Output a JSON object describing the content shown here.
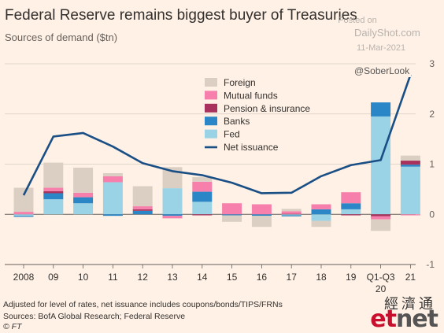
{
  "title": "Federal Reserve remains biggest buyer of Treasuries",
  "subtitle": "Sources of demand ($tn)",
  "watermark": {
    "posted": "Posted on",
    "site": "DailyShot.com",
    "date": "11-Mar-2021",
    "handle": "@SoberLook"
  },
  "footnote": "Adjusted for level of rates, net issuance includes coupons/bonds/TIPS/FRNs",
  "sources": "Sources: BofA Global Research; Federal Reserve",
  "copyright": "© FT",
  "logo": {
    "chinese": "經濟通",
    "et": "et",
    "net": "net"
  },
  "colors": {
    "background": "#fff1e5",
    "foreign": "#dbcfc4",
    "mutual_funds": "#f77fab",
    "pension_insurance": "#a8315d",
    "banks": "#2a86c6",
    "fed": "#9ad3e5",
    "net_issuance": "#1a4f86",
    "grid": "#d6cbc2"
  },
  "chart_data": {
    "type": "bar",
    "stacked": true,
    "title": "Federal Reserve remains biggest buyer of Treasuries",
    "subtitle": "Sources of demand ($tn)",
    "categories": [
      "2008",
      "09",
      "10",
      "11",
      "12",
      "13",
      "14",
      "15",
      "16",
      "17",
      "18",
      "19",
      "Q1-Q3",
      "21"
    ],
    "category_sublabels": [
      "",
      "",
      "",
      "",
      "",
      "",
      "",
      "",
      "",
      "",
      "",
      "",
      "20",
      ""
    ],
    "ylim": [
      -1,
      3
    ],
    "yticks": [
      -1,
      0,
      1,
      2,
      3
    ],
    "legend_position": "top-center",
    "series": [
      {
        "key": "fed",
        "name": "Fed",
        "color": "#9ad3e5",
        "values": [
          -0.03,
          0.3,
          0.22,
          0.64,
          0.0,
          0.52,
          0.25,
          0.0,
          0.0,
          -0.02,
          -0.13,
          0.1,
          1.95,
          0.95
        ]
      },
      {
        "key": "banks",
        "name": "Banks",
        "color": "#2a86c6",
        "values": [
          -0.02,
          0.12,
          0.12,
          -0.03,
          0.07,
          -0.03,
          0.2,
          -0.02,
          -0.03,
          -0.02,
          0.1,
          0.12,
          0.28,
          0.04
        ]
      },
      {
        "key": "pension_insurance",
        "name": "Pension & insurance",
        "color": "#a8315d",
        "values": [
          0.0,
          0.04,
          0.0,
          0.0,
          0.03,
          0.0,
          -0.02,
          0.0,
          0.0,
          0.01,
          0.0,
          -0.02,
          -0.04,
          0.08
        ]
      },
      {
        "key": "mutual_funds",
        "name": "Mutual funds",
        "color": "#f77fab",
        "values": [
          0.05,
          0.07,
          0.09,
          0.12,
          0.06,
          -0.05,
          0.2,
          0.22,
          0.2,
          0.05,
          0.1,
          0.22,
          -0.06,
          -0.02
        ]
      },
      {
        "key": "foreign",
        "name": "Foreign",
        "color": "#dbcfc4",
        "values": [
          0.48,
          0.5,
          0.5,
          0.06,
          0.4,
          0.42,
          0.09,
          -0.13,
          -0.22,
          0.05,
          -0.12,
          0.0,
          -0.23,
          0.1
        ]
      }
    ],
    "line": {
      "key": "net_issuance",
      "name": "Net issuance",
      "color": "#1a4f86",
      "values": [
        0.38,
        1.55,
        1.62,
        1.35,
        1.02,
        0.86,
        0.78,
        0.63,
        0.42,
        0.43,
        0.76,
        0.98,
        1.08,
        2.78
      ]
    },
    "legend_order": [
      "foreign",
      "mutual_funds",
      "pension_insurance",
      "banks",
      "fed",
      "net_issuance"
    ]
  }
}
